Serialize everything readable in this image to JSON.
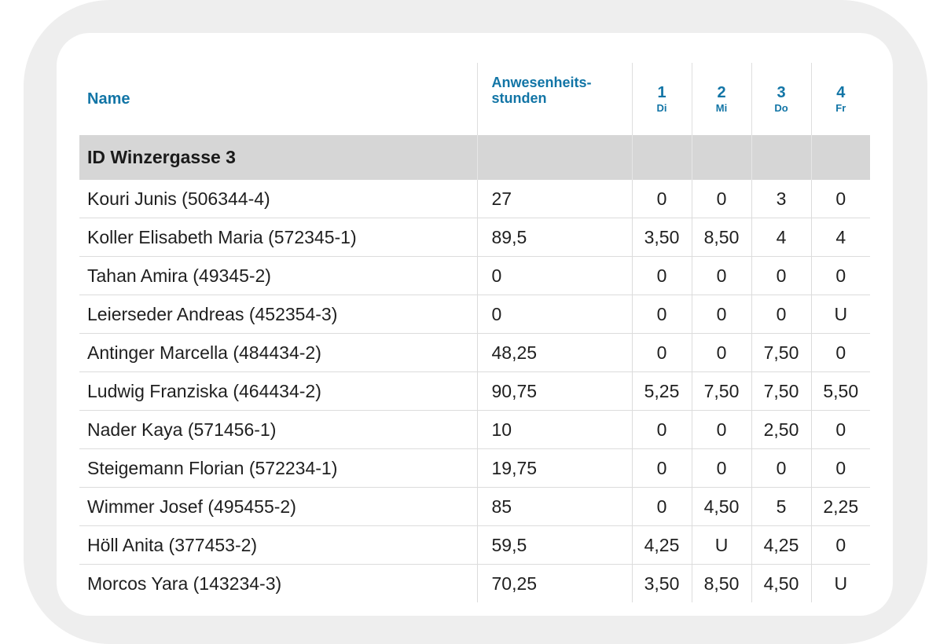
{
  "columns": {
    "name": "Name",
    "hours_line1": "Anwesenheits-",
    "hours_line2": "stunden",
    "days": [
      {
        "num": "1",
        "name": "Di"
      },
      {
        "num": "2",
        "name": "Mi"
      },
      {
        "num": "3",
        "name": "Do"
      },
      {
        "num": "4",
        "name": "Fr"
      }
    ]
  },
  "group": {
    "label": "ID Winzergasse 3"
  },
  "rows": [
    {
      "name": "Kouri Junis (506344-4)",
      "hours": "27",
      "d": [
        "0",
        "0",
        "3",
        "0"
      ]
    },
    {
      "name": "Koller Elisabeth Maria (572345-1)",
      "hours": "89,5",
      "d": [
        "3,50",
        "8,50",
        "4",
        "4"
      ]
    },
    {
      "name": "Tahan Amira (49345-2)",
      "hours": "0",
      "d": [
        "0",
        "0",
        "0",
        "0"
      ]
    },
    {
      "name": "Leierseder Andreas (452354-3)",
      "hours": "0",
      "d": [
        "0",
        "0",
        "0",
        "U"
      ]
    },
    {
      "name": "Antinger Marcella (484434-2)",
      "hours": "48,25",
      "d": [
        "0",
        "0",
        "7,50",
        "0"
      ]
    },
    {
      "name": "Ludwig Franziska (464434-2)",
      "hours": "90,75",
      "d": [
        "5,25",
        "7,50",
        "7,50",
        "5,50"
      ]
    },
    {
      "name": "Nader Kaya (571456-1)",
      "hours": "10",
      "d": [
        "0",
        "0",
        "2,50",
        "0"
      ]
    },
    {
      "name": "Steigemann Florian (572234-1)",
      "hours": "19,75",
      "d": [
        "0",
        "0",
        "0",
        "0"
      ]
    },
    {
      "name": "Wimmer Josef (495455-2)",
      "hours": "85",
      "d": [
        "0",
        "4,50",
        "5",
        "2,25"
      ]
    },
    {
      "name": "Höll Anita (377453-2)",
      "hours": "59,5",
      "d": [
        "4,25",
        "U",
        "4,25",
        "0"
      ]
    },
    {
      "name": "Morcos Yara (143234-3)",
      "hours": "70,25",
      "d": [
        "3,50",
        "8,50",
        "4,50",
        "U"
      ]
    }
  ]
}
